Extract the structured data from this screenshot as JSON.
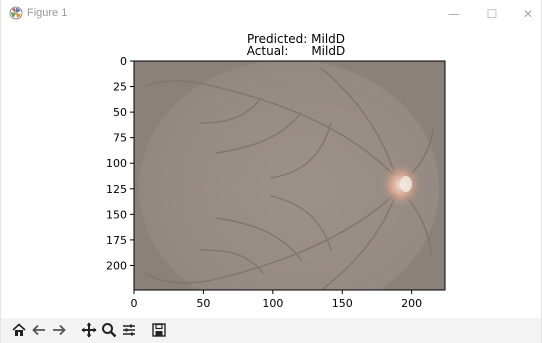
{
  "window": {
    "title": "Figure 1",
    "controls": {
      "minimize": "—",
      "maximize": "☐",
      "close": "✕"
    }
  },
  "figure": {
    "title_line1": "Predicted: MildD",
    "title_line2": "Actual:      MildD",
    "image_alt_content": "retinal fundus image"
  },
  "chart_data": {
    "type": "image",
    "title": "Predicted: MildD\nActual:      MildD",
    "xlim": [
      0,
      224
    ],
    "ylim": [
      224,
      0
    ],
    "x_ticks": [
      0,
      50,
      100,
      150,
      200
    ],
    "y_ticks": [
      0,
      25,
      50,
      75,
      100,
      125,
      150,
      175,
      200
    ],
    "grid": false
  },
  "toolbar": {
    "items": [
      {
        "name": "home-icon"
      },
      {
        "name": "back-arrow-icon"
      },
      {
        "name": "forward-arrow-icon"
      },
      {
        "name": "pan-icon"
      },
      {
        "name": "zoom-icon"
      },
      {
        "name": "configure-subplots-icon"
      },
      {
        "name": "save-icon"
      }
    ]
  }
}
